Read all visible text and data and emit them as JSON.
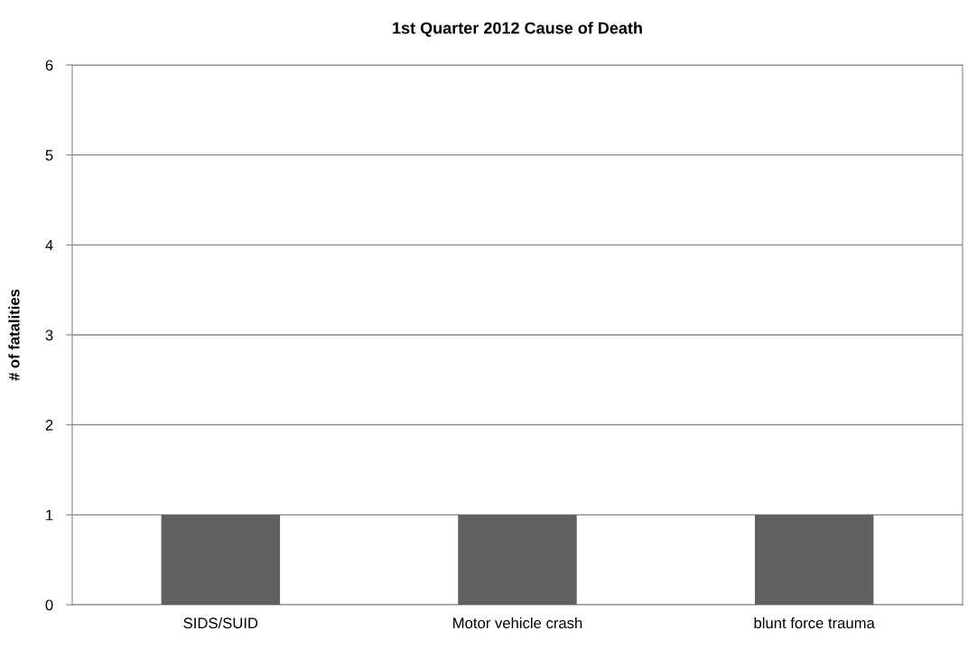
{
  "chart_data": {
    "type": "bar",
    "title": "1st Quarter 2012 Cause of Death",
    "ylabel": "# of fatalities",
    "categories": [
      "SIDS/SUID",
      "Motor vehicle crash",
      "blunt force trauma"
    ],
    "values": [
      1,
      1,
      1
    ],
    "color": "#606060",
    "ylim": [
      0,
      6
    ],
    "yticks": [
      0,
      1,
      2,
      3,
      4,
      5,
      6
    ],
    "grid": "y",
    "legend": false
  }
}
